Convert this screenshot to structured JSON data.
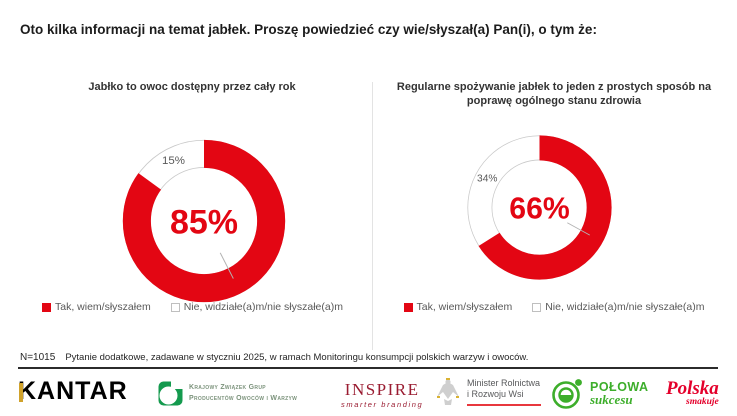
{
  "page": {
    "title": "Oto kilka informacji na temat jabłek. Proszę powiedzieć czy wie/słyszał(a) Pan(i), o tym że:",
    "footnote_n": "N=1015",
    "footnote_text": "Pytanie dodatkowe, zadawane w styczniu 2025, w ramach Monitoringu konsumpcji polskich warzyw i owoców."
  },
  "colors": {
    "accent_red": "#e30613",
    "label_grey": "#595959",
    "ring_outline": "#c9c9c9",
    "green": "#3dae2b",
    "inspire_red": "#9a1c31",
    "polska_red": "#e4002b"
  },
  "chart_data": [
    {
      "type": "pie",
      "donut": true,
      "title": "Jabłko to owoc dostępny przez cały rok",
      "categories": [
        "Tak, wiem/słyszałem",
        "Nie, widziałe(a)m/nie słyszałe(a)m"
      ],
      "values": [
        85,
        15
      ],
      "colors": [
        "#e30613",
        "#ffffff"
      ],
      "center_label": "85%",
      "outside_label": "15%",
      "start_angle_deg": 0,
      "direction": "clockwise",
      "legend_position": "bottom"
    },
    {
      "type": "pie",
      "donut": true,
      "title": "Regularne spożywanie jabłek to jeden z prostych sposób na poprawę ogólnego stanu zdrowia",
      "categories": [
        "Tak, wiem/słyszałem",
        "Nie, widziałe(a)m/nie słyszałe(a)m"
      ],
      "values": [
        66,
        34
      ],
      "colors": [
        "#e30613",
        "#ffffff"
      ],
      "center_label": "66%",
      "outside_label": "34%",
      "start_angle_deg": 0,
      "direction": "clockwise",
      "legend_position": "bottom"
    }
  ],
  "logos": {
    "kantar": {
      "text": "KANTAR"
    },
    "kzgpow": {
      "line1": "Krajowy Związek Grup",
      "line2": "Producentów Owoców i Warzyw"
    },
    "inspire": {
      "name": "INSPIRE",
      "tagline": "smarter branding"
    },
    "minister": {
      "line1": "Minister Rolnictwa",
      "line2": "i Rozwoju Wsi"
    },
    "polowa": {
      "line1": "POŁOWA",
      "line2": "sukcesu"
    },
    "polska": {
      "line1": "Polska",
      "line2": "smakuje"
    }
  }
}
